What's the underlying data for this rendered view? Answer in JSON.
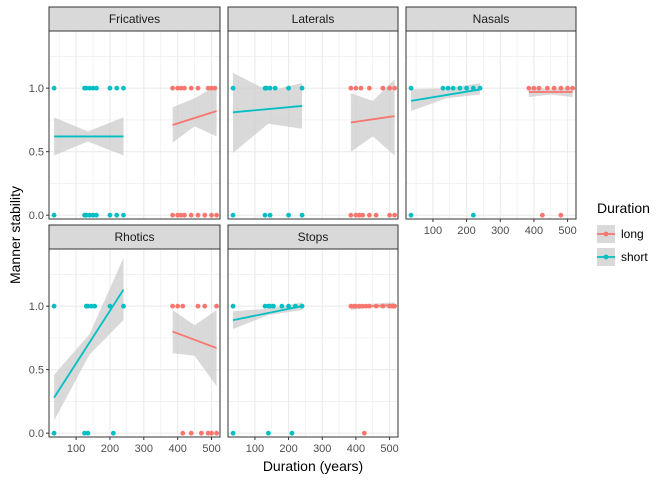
{
  "chart_data": {
    "type": "scatter",
    "title": "",
    "xlabel": "Duration (years)",
    "ylabel": "Manner stability",
    "xlim": [
      20,
      525
    ],
    "ylim": [
      -0.03,
      1.45
    ],
    "x_ticks": [
      100,
      200,
      300,
      400,
      500
    ],
    "x_tick_labels": [
      "100",
      "200",
      "300",
      "400",
      "500"
    ],
    "y_ticks": [
      0,
      0.5,
      1
    ],
    "y_tick_labels": [
      "0.0",
      "0.5",
      "1.0"
    ],
    "legend": {
      "title": "Duration",
      "position": "right",
      "entries": [
        {
          "label": "long",
          "color": "#F8766D"
        },
        {
          "label": "short",
          "color": "#00BFC4"
        }
      ]
    },
    "colors": {
      "long": "#F8766D",
      "short": "#00BFC4",
      "ribbon": "#cccccc",
      "panel_bg": "#ffffff",
      "strip_bg": "#d9d9d9",
      "grid": "#ebebeb"
    },
    "facets": [
      {
        "name": "Fricatives",
        "series": [
          {
            "group": "short",
            "points": [
              [
                35,
                1
              ],
              [
                35,
                0
              ],
              [
                125,
                1
              ],
              [
                130,
                1
              ],
              [
                140,
                1
              ],
              [
                150,
                1
              ],
              [
                160,
                1
              ],
              [
                200,
                1
              ],
              [
                220,
                1
              ],
              [
                240,
                1
              ],
              [
                125,
                0
              ],
              [
                130,
                0
              ],
              [
                140,
                0
              ],
              [
                150,
                0
              ],
              [
                160,
                0
              ],
              [
                200,
                0
              ],
              [
                220,
                0
              ],
              [
                240,
                0
              ]
            ],
            "fit": [
              [
                35,
                0.62
              ],
              [
                240,
                0.62
              ]
            ],
            "band": {
              "x": [
                35,
                135,
                240
              ],
              "lower": [
                0.47,
                0.58,
                0.47
              ],
              "upper": [
                0.77,
                0.66,
                0.77
              ]
            }
          },
          {
            "group": "long",
            "points": [
              [
                385,
                1
              ],
              [
                400,
                1
              ],
              [
                410,
                1
              ],
              [
                420,
                1
              ],
              [
                440,
                1
              ],
              [
                460,
                1
              ],
              [
                490,
                1
              ],
              [
                500,
                1
              ],
              [
                510,
                1
              ],
              [
                385,
                0
              ],
              [
                400,
                0
              ],
              [
                410,
                0
              ],
              [
                420,
                0
              ],
              [
                440,
                0
              ],
              [
                460,
                0
              ],
              [
                480,
                0
              ],
              [
                500,
                0
              ],
              [
                515,
                0
              ]
            ],
            "fit": [
              [
                385,
                0.71
              ],
              [
                515,
                0.82
              ]
            ],
            "band": {
              "x": [
                385,
                450,
                515
              ],
              "lower": [
                0.57,
                0.7,
                0.62
              ],
              "upper": [
                0.85,
                0.92,
                1.02
              ]
            }
          }
        ]
      },
      {
        "name": "Laterals",
        "series": [
          {
            "group": "short",
            "points": [
              [
                35,
                1
              ],
              [
                35,
                0
              ],
              [
                130,
                1
              ],
              [
                135,
                1
              ],
              [
                145,
                1
              ],
              [
                160,
                1
              ],
              [
                200,
                1
              ],
              [
                240,
                1
              ],
              [
                130,
                0
              ],
              [
                145,
                0
              ],
              [
                200,
                0
              ],
              [
                240,
                0
              ]
            ],
            "fit": [
              [
                35,
                0.81
              ],
              [
                240,
                0.86
              ]
            ],
            "band": {
              "x": [
                35,
                140,
                240
              ],
              "lower": [
                0.49,
                0.72,
                0.68
              ],
              "upper": [
                1.12,
                0.98,
                1.04
              ]
            }
          },
          {
            "group": "long",
            "points": [
              [
                385,
                1
              ],
              [
                400,
                1
              ],
              [
                415,
                1
              ],
              [
                440,
                1
              ],
              [
                480,
                1
              ],
              [
                500,
                1
              ],
              [
                515,
                1
              ],
              [
                385,
                0
              ],
              [
                400,
                0
              ],
              [
                410,
                0
              ],
              [
                420,
                0
              ],
              [
                440,
                0
              ],
              [
                460,
                0
              ],
              [
                500,
                0
              ],
              [
                515,
                0
              ]
            ],
            "fit": [
              [
                385,
                0.73
              ],
              [
                515,
                0.78
              ]
            ],
            "band": {
              "x": [
                385,
                450,
                515
              ],
              "lower": [
                0.5,
                0.62,
                0.47
              ],
              "upper": [
                0.96,
                0.9,
                1.07
              ]
            }
          }
        ]
      },
      {
        "name": "Nasals",
        "series": [
          {
            "group": "short",
            "points": [
              [
                35,
                1
              ],
              [
                35,
                0
              ],
              [
                130,
                1
              ],
              [
                145,
                1
              ],
              [
                160,
                1
              ],
              [
                180,
                1
              ],
              [
                200,
                1
              ],
              [
                220,
                1
              ],
              [
                240,
                1
              ],
              [
                220,
                0
              ]
            ],
            "fit": [
              [
                35,
                0.9
              ],
              [
                240,
                0.99
              ]
            ],
            "band": {
              "x": [
                35,
                140,
                240
              ],
              "lower": [
                0.82,
                0.92,
                0.95
              ],
              "upper": [
                0.99,
                1.0,
                1.04
              ]
            }
          },
          {
            "group": "long",
            "points": [
              [
                385,
                1
              ],
              [
                400,
                1
              ],
              [
                415,
                1
              ],
              [
                440,
                1
              ],
              [
                460,
                1
              ],
              [
                480,
                1
              ],
              [
                500,
                1
              ],
              [
                515,
                1
              ],
              [
                425,
                0
              ],
              [
                480,
                0
              ]
            ],
            "fit": [
              [
                385,
                0.97
              ],
              [
                515,
                0.97
              ]
            ],
            "band": {
              "x": [
                385,
                450,
                515
              ],
              "lower": [
                0.93,
                0.95,
                0.93
              ],
              "upper": [
                1.01,
                0.99,
                1.01
              ]
            }
          }
        ]
      },
      {
        "name": "Rhotics",
        "series": [
          {
            "group": "short",
            "points": [
              [
                35,
                1
              ],
              [
                35,
                0
              ],
              [
                130,
                1
              ],
              [
                135,
                1
              ],
              [
                145,
                1
              ],
              [
                155,
                1
              ],
              [
                200,
                1
              ],
              [
                240,
                1
              ],
              [
                125,
                0
              ],
              [
                135,
                0
              ],
              [
                210,
                0
              ]
            ],
            "fit": [
              [
                35,
                0.28
              ],
              [
                240,
                1.13
              ]
            ],
            "band": {
              "x": [
                35,
                140,
                240
              ],
              "lower": [
                0.1,
                0.62,
                0.89
              ],
              "upper": [
                0.46,
                0.78,
                1.38
              ]
            }
          },
          {
            "group": "long",
            "points": [
              [
                385,
                1
              ],
              [
                400,
                1
              ],
              [
                415,
                1
              ],
              [
                460,
                1
              ],
              [
                480,
                1
              ],
              [
                515,
                1
              ],
              [
                415,
                0
              ],
              [
                440,
                0
              ],
              [
                470,
                0
              ],
              [
                490,
                0
              ],
              [
                500,
                0
              ],
              [
                515,
                0
              ]
            ],
            "fit": [
              [
                385,
                0.8
              ],
              [
                515,
                0.67
              ]
            ],
            "band": {
              "x": [
                385,
                450,
                515
              ],
              "lower": [
                0.63,
                0.61,
                0.37
              ],
              "upper": [
                0.97,
                0.85,
                0.97
              ]
            }
          }
        ]
      },
      {
        "name": "Stops",
        "series": [
          {
            "group": "short",
            "points": [
              [
                35,
                1
              ],
              [
                35,
                0
              ],
              [
                130,
                1
              ],
              [
                140,
                1
              ],
              [
                145,
                1
              ],
              [
                155,
                1
              ],
              [
                180,
                1
              ],
              [
                200,
                1
              ],
              [
                220,
                1
              ],
              [
                240,
                1
              ],
              [
                140,
                0
              ],
              [
                210,
                0
              ]
            ],
            "fit": [
              [
                35,
                0.89
              ],
              [
                240,
                1.0
              ]
            ],
            "band": {
              "x": [
                35,
                140,
                240
              ],
              "lower": [
                0.82,
                0.93,
                0.97
              ],
              "upper": [
                0.96,
                0.98,
                1.03
              ]
            }
          },
          {
            "group": "long",
            "points": [
              [
                385,
                1
              ],
              [
                395,
                1
              ],
              [
                400,
                1
              ],
              [
                410,
                1
              ],
              [
                420,
                1
              ],
              [
                430,
                1
              ],
              [
                440,
                1
              ],
              [
                460,
                1
              ],
              [
                480,
                1
              ],
              [
                500,
                1
              ],
              [
                510,
                1
              ],
              [
                515,
                1
              ],
              [
                425,
                0
              ]
            ],
            "fit": [
              [
                385,
                0.99
              ],
              [
                515,
                1.01
              ]
            ],
            "band": {
              "x": [
                385,
                450,
                515
              ],
              "lower": [
                0.97,
                0.99,
                0.98
              ],
              "upper": [
                1.01,
                1.02,
                1.03
              ]
            }
          }
        ]
      }
    ]
  }
}
